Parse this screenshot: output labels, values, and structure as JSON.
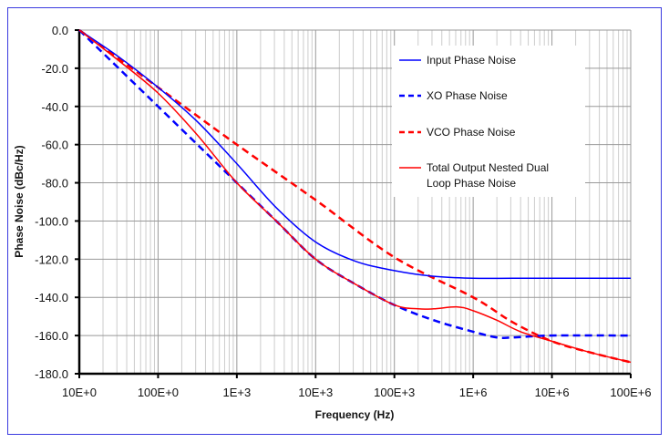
{
  "chart_data": {
    "type": "line",
    "xlabel": "Frequency (Hz)",
    "ylabel": "Phase Noise (dBc/Hz)",
    "xscale": "log",
    "xlim": [
      10,
      100000000
    ],
    "ylim": [
      -180,
      0
    ],
    "grid": true,
    "legend_position": "top-right",
    "x_tick_labels": [
      "10E+0",
      "100E+0",
      "1E+3",
      "10E+3",
      "100E+3",
      "1E+6",
      "10E+6",
      "100E+6"
    ],
    "y_tick_labels": [
      "0.0",
      "-20.0",
      "-40.0",
      "-60.0",
      "-80.0",
      "-100.0",
      "-120.0",
      "-140.0",
      "-160.0",
      "-180.0"
    ],
    "series": [
      {
        "name": "Input Phase Noise",
        "color": "#0000ff",
        "style": "solid",
        "x": [
          10,
          31.6,
          100,
          316,
          1000,
          3162,
          10000,
          31623,
          100000,
          316228,
          1000000,
          3162278,
          10000000,
          100000000
        ],
        "y": [
          0,
          -14,
          -30,
          -48,
          -70,
          -93,
          -111,
          -121,
          -126,
          -129,
          -130,
          -130,
          -130,
          -130
        ]
      },
      {
        "name": "XO Phase Noise",
        "color": "#0000ff",
        "style": "dashed",
        "x": [
          10,
          31.6,
          100,
          316,
          1000,
          3162,
          10000,
          31623,
          100000,
          316228,
          1000000,
          2000000,
          3162278,
          10000000,
          100000000
        ],
        "y": [
          0,
          -20,
          -40,
          -60,
          -80,
          -100,
          -120,
          -133,
          -144,
          -152,
          -158,
          -161,
          -161,
          -160,
          -160
        ]
      },
      {
        "name": "VCO Phase Noise",
        "color": "#ff0000",
        "style": "dashed",
        "x": [
          10,
          100,
          1000,
          10000,
          100000,
          1000000,
          3162278,
          10000000,
          31622777,
          100000000
        ],
        "y": [
          0,
          -30,
          -60,
          -89,
          -119,
          -140,
          -153,
          -163,
          -169,
          -174
        ]
      },
      {
        "name": "Total Output Nested Dual Loop Phase Noise",
        "color": "#ff0000",
        "style": "solid",
        "x": [
          10,
          31.6,
          100,
          316,
          1000,
          3162,
          10000,
          31623,
          100000,
          200000,
          316228,
          631000,
          1000000,
          2000000,
          4000000,
          10000000,
          31622777,
          100000000
        ],
        "y": [
          0,
          -16,
          -33,
          -55,
          -80,
          -100,
          -120,
          -133,
          -144,
          -146,
          -146,
          -145,
          -147,
          -152,
          -158,
          -163,
          -169,
          -174
        ]
      }
    ],
    "legend_lines": [
      [
        "Input Phase Noise"
      ],
      [
        "XO Phase Noise"
      ],
      [
        "VCO Phase Noise"
      ],
      [
        "Total Output Nested Dual",
        "Loop Phase Noise"
      ]
    ]
  }
}
